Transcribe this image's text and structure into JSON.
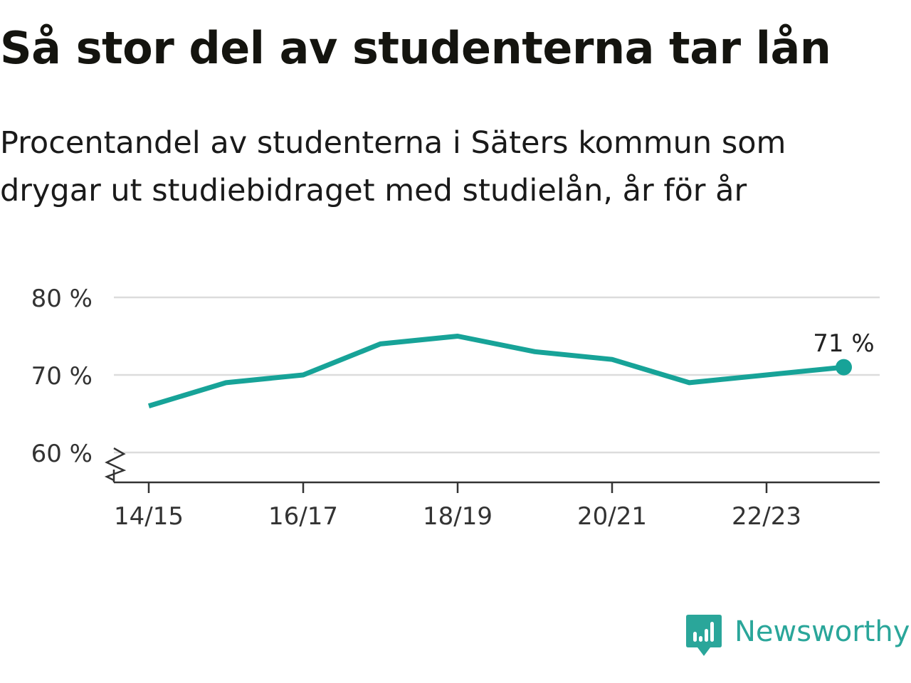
{
  "title": "Så stor del av studenterna tar lån",
  "subtitle": "Procentandel av studenterna i Säters kommun som drygar ut studiebidraget med studielån, år för år",
  "brand": {
    "name": "Newsworthy",
    "icon": "newsworthy-logo-icon",
    "color": "#2aa69a"
  },
  "chart_data": {
    "type": "line",
    "x": [
      "14/15",
      "15/16",
      "16/17",
      "17/18",
      "18/19",
      "19/20",
      "20/21",
      "21/22",
      "22/23",
      "23/24"
    ],
    "series": [
      {
        "values": [
          66,
          69,
          70,
          74,
          75,
          73,
          72,
          69,
          70,
          71
        ],
        "color": "#17a398"
      }
    ],
    "x_tick_labels": [
      "14/15",
      "16/17",
      "18/19",
      "20/21",
      "22/23"
    ],
    "y_ticks": [
      60,
      70,
      80
    ],
    "y_tick_labels": [
      "60 %",
      "70 %",
      "80 %"
    ],
    "ylim": [
      56,
      80
    ],
    "axis_break": true,
    "grid": true,
    "end_label": "71 %"
  }
}
